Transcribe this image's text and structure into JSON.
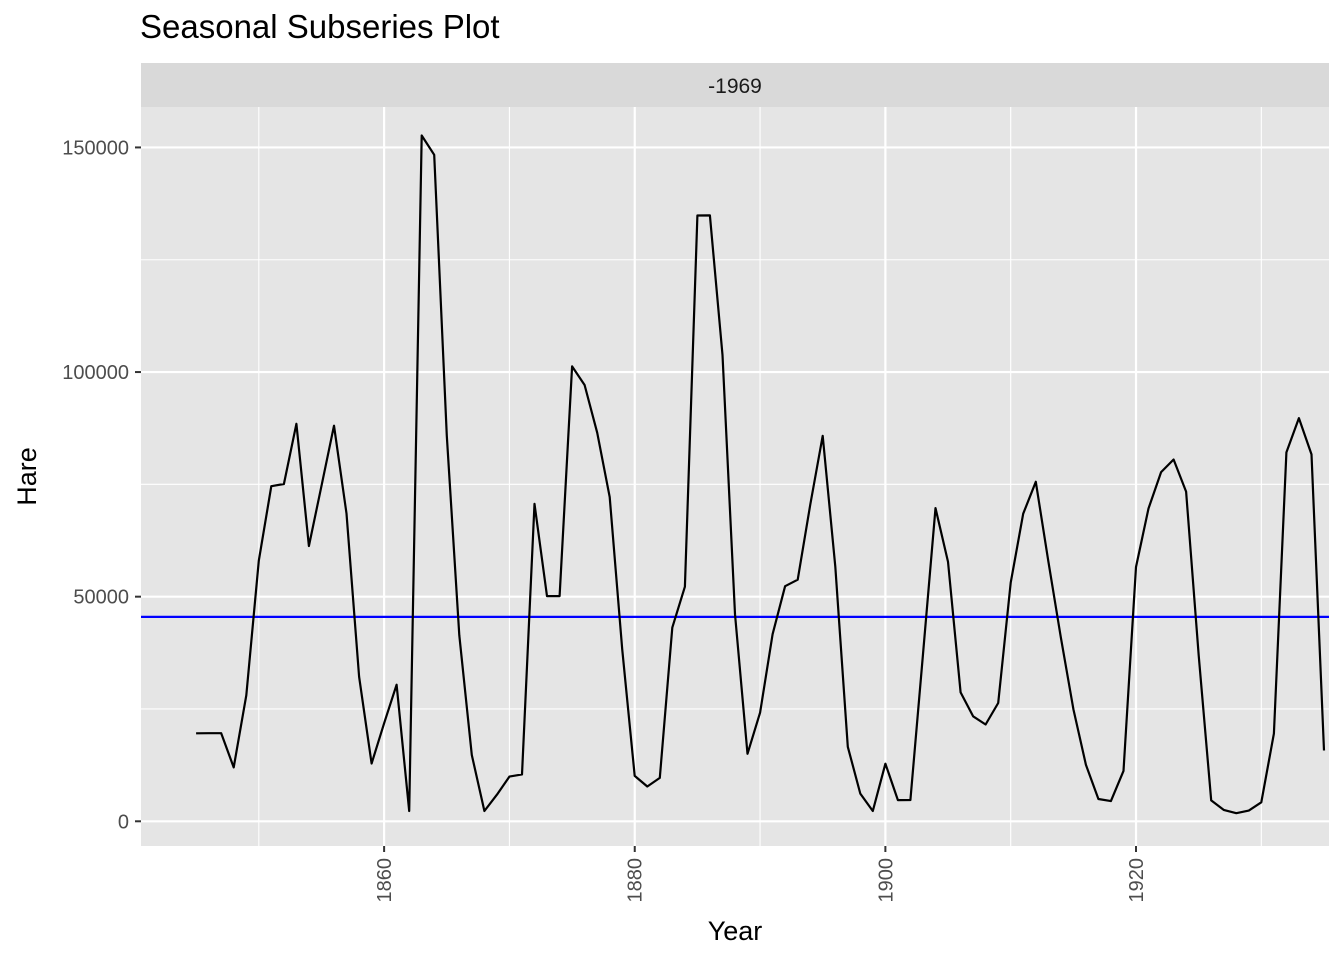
{
  "chart_data": {
    "type": "line",
    "title": "Seasonal Subseries Plot",
    "facet_label": "-1969",
    "xlabel": "Year",
    "ylabel": "Hare",
    "xlim": [
      1840.6,
      1935.4
    ],
    "ylim": [
      -5500,
      159000
    ],
    "xticks": [
      1860,
      1880,
      1900,
      1920
    ],
    "xtick_labels": [
      "1860",
      "1880",
      "1900",
      "1920"
    ],
    "xminor": [
      1850,
      1870,
      1890,
      1910,
      1930
    ],
    "yticks": [
      0,
      50000,
      100000,
      150000
    ],
    "ytick_labels": [
      "0",
      "50000",
      "100000",
      "150000"
    ],
    "yminor": [
      25000,
      75000,
      125000
    ],
    "grid": true,
    "series": [
      {
        "color": "#000000",
        "x": [
          1845,
          1846,
          1847,
          1848,
          1849,
          1850,
          1851,
          1852,
          1853,
          1854,
          1855,
          1856,
          1857,
          1858,
          1859,
          1860,
          1861,
          1862,
          1863,
          1864,
          1865,
          1866,
          1867,
          1868,
          1869,
          1870,
          1871,
          1872,
          1873,
          1874,
          1875,
          1876,
          1877,
          1878,
          1879,
          1880,
          1881,
          1882,
          1883,
          1884,
          1885,
          1886,
          1887,
          1888,
          1889,
          1890,
          1891,
          1892,
          1893,
          1894,
          1895,
          1896,
          1897,
          1898,
          1899,
          1900,
          1901,
          1902,
          1903,
          1904,
          1905,
          1906,
          1907,
          1908,
          1909,
          1910,
          1911,
          1912,
          1913,
          1914,
          1915,
          1916,
          1917,
          1918,
          1919,
          1920,
          1921,
          1922,
          1923,
          1924,
          1925,
          1926,
          1927,
          1928,
          1929,
          1930,
          1931,
          1932,
          1933,
          1934,
          1935
        ],
        "y": [
          19580,
          19600,
          19610,
          11990,
          28040,
          58000,
          74600,
          75090,
          88480,
          61280,
          74670,
          88060,
          68510,
          32190,
          12860,
          21810,
          30400,
          2290,
          152650,
          148360,
          85810,
          41410,
          14750,
          2280,
          5910,
          9950,
          10440,
          70640,
          50120,
          50130,
          101250,
          97120,
          86510,
          72170,
          38320,
          10110,
          7740,
          9670,
          43120,
          52210,
          134850,
          134860,
          103790,
          46100,
          15030,
          24200,
          41650,
          52340,
          53780,
          70400,
          85810,
          56690,
          16590,
          6160,
          2300,
          12820,
          4720,
          4730,
          37220,
          69720,
          57780,
          28680,
          23370,
          21540,
          26340,
          53100,
          68480,
          75580,
          57920,
          40970,
          24950,
          12590,
          4970,
          4500,
          11210,
          56600,
          69630,
          77740,
          80530,
          73380,
          36930,
          4640,
          2540,
          1800,
          2390,
          4230,
          19520,
          82110,
          89760,
          81660,
          15760
        ]
      }
    ],
    "reference_line": {
      "y": 45500,
      "color": "#0000ff"
    },
    "colors": {
      "panel": "#e5e5e5",
      "strip": "#d9d9d9",
      "grid": "#ffffff",
      "axis_text": "#4d4d4d"
    }
  }
}
